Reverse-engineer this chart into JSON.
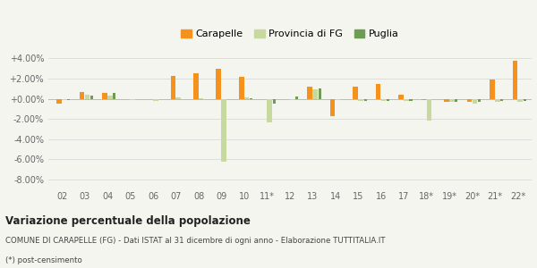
{
  "categories": [
    "02",
    "03",
    "04",
    "05",
    "06",
    "07",
    "08",
    "09",
    "10",
    "11*",
    "12",
    "13",
    "14",
    "15",
    "16",
    "17",
    "18*",
    "19*",
    "20*",
    "21*",
    "22*"
  ],
  "carapelle": [
    -0.5,
    0.7,
    0.6,
    0.0,
    0.0,
    2.3,
    2.5,
    3.0,
    2.2,
    0.0,
    0.0,
    1.2,
    -1.7,
    1.2,
    1.5,
    0.4,
    -0.1,
    -0.3,
    -0.3,
    1.9,
    3.8
  ],
  "provincia_fg": [
    -0.1,
    0.4,
    0.35,
    -0.15,
    -0.2,
    0.1,
    0.05,
    -6.2,
    0.1,
    -2.3,
    -0.1,
    0.9,
    -0.1,
    -0.2,
    -0.2,
    -0.2,
    -2.2,
    -0.3,
    -0.5,
    -0.3,
    -0.3
  ],
  "puglia": [
    -0.1,
    0.35,
    0.6,
    0.0,
    0.0,
    0.0,
    0.0,
    0.0,
    0.05,
    -0.5,
    0.2,
    1.0,
    0.0,
    -0.2,
    -0.2,
    -0.2,
    0.0,
    -0.35,
    -0.35,
    -0.25,
    -0.2
  ],
  "color_carapelle": "#f5921e",
  "color_provincia": "#c8d9a0",
  "color_puglia": "#6e9c52",
  "bg_color": "#f5f5f0",
  "grid_color": "#dddddd",
  "title_bold": "Variazione percentuale della popolazione",
  "subtitle": "COMUNE DI CARAPELLE (FG) - Dati ISTAT al 31 dicembre di ogni anno - Elaborazione TUTTITALIA.IT",
  "footnote": "(*) post-censimento",
  "yticks": [
    -8.0,
    -6.0,
    -4.0,
    -2.0,
    0.0,
    2.0,
    4.0
  ],
  "ylim": [
    -8.8,
    5.0
  ],
  "legend_labels": [
    "Carapelle",
    "Provincia di FG",
    "Puglia"
  ]
}
